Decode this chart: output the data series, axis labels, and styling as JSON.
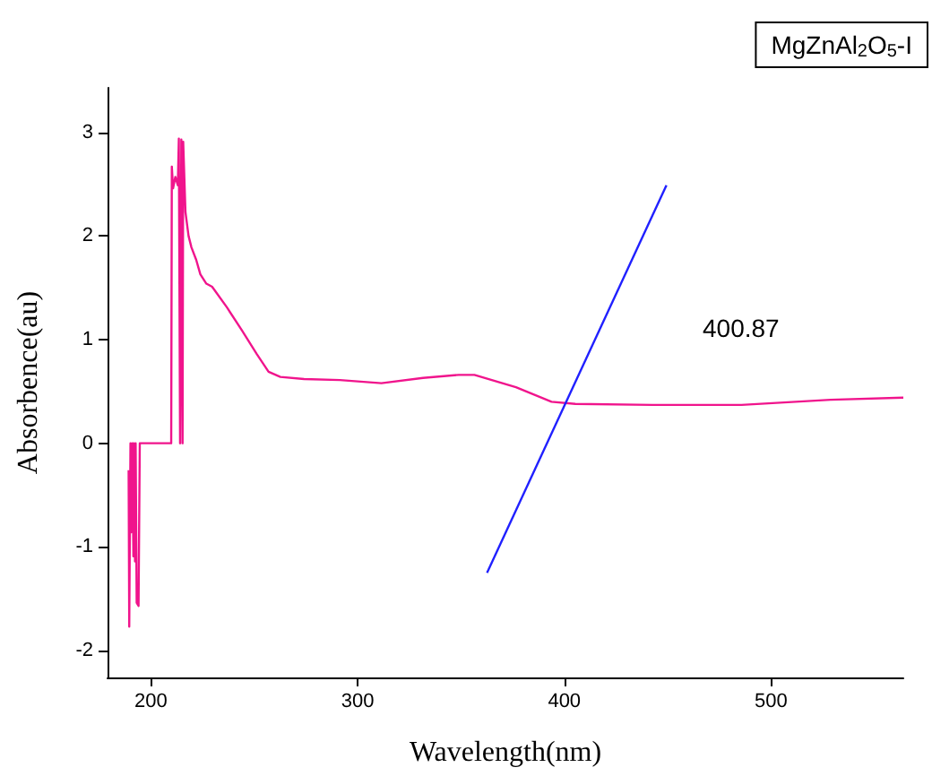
{
  "chart_data": {
    "type": "line",
    "xlabel": "Wavelength(nm)",
    "ylabel": "Absorbence(au)",
    "annotations": [
      "MgZnAl$_{2}$O$_{5}$-I",
      "400.87"
    ],
    "xlim": [
      179,
      564
    ],
    "xticks": [
      200,
      300,
      400,
      500
    ],
    "ylim": [
      -2.26,
      3.43
    ],
    "yticks": [
      -2,
      -1,
      0,
      1,
      2,
      3
    ],
    "grid": false,
    "marker": "none",
    "line_style": "solid",
    "series": [
      {
        "color": "#f0148c",
        "x": [
          189.2,
          189.5,
          190.1,
          190.4,
          191,
          191.5,
          191.7,
          192.3,
          192.6,
          193.1,
          194,
          194.6,
          209.8,
          210.1,
          210.7,
          211.8,
          213,
          213.5,
          214.1,
          214.7,
          215.3,
          215.6,
          216.7,
          218.2,
          219.6,
          221.9,
          223.9,
          226.8,
          229.6,
          236.8,
          244,
          251.2,
          256.9,
          262.6,
          274.1,
          291.4,
          311.5,
          331.6,
          348.9,
          356.5,
          376.6,
          393.8,
          405.3,
          442.6,
          485.7,
          528.8,
          564
        ],
        "values": [
          -0.26,
          -1.77,
          0,
          -0.86,
          0,
          -1.09,
          0,
          -1.14,
          0,
          -1.54,
          -1.57,
          0,
          0,
          2.67,
          2.46,
          2.57,
          2.49,
          2.94,
          0,
          2.93,
          0,
          2.91,
          2.23,
          2.0,
          1.89,
          1.77,
          1.63,
          1.54,
          1.51,
          1.31,
          1.09,
          0.86,
          0.69,
          0.64,
          0.62,
          0.61,
          0.58,
          0.63,
          0.66,
          0.66,
          0.54,
          0.4,
          0.38,
          0.37,
          0.37,
          0.42,
          0.44
        ]
      },
      {
        "color": "#2020ff",
        "x": [
          362.6,
          449.4
        ],
        "values": [
          -1.25,
          2.49
        ]
      }
    ]
  }
}
